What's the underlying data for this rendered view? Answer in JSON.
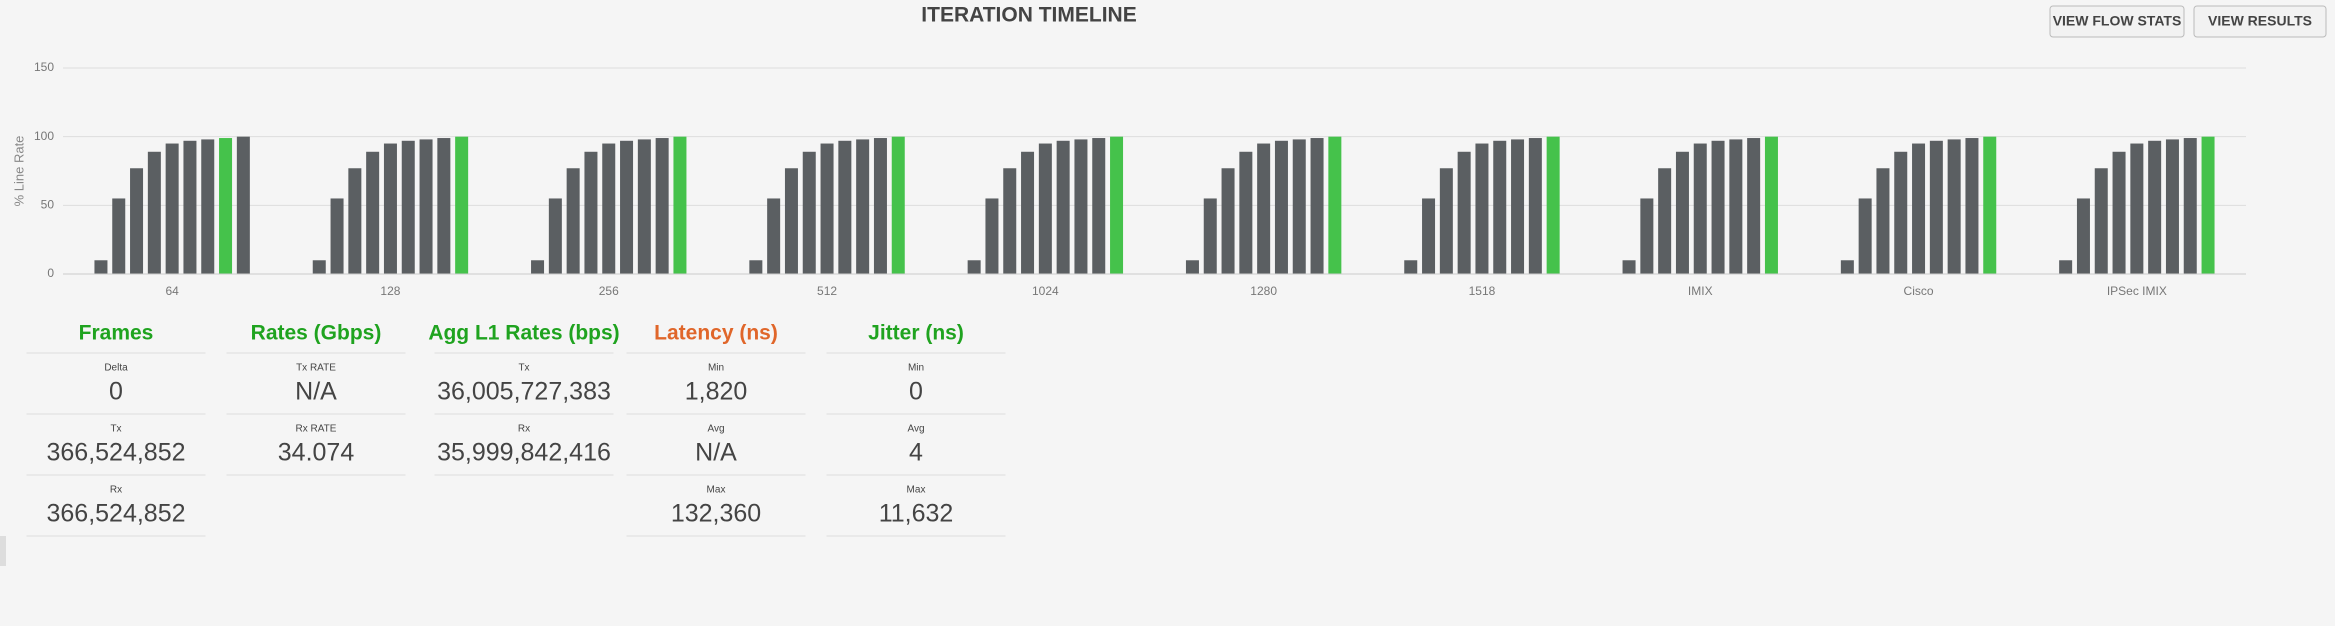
{
  "chart_data": {
    "type": "bar",
    "title": "ITERATION TIMELINE",
    "y_label": "% Line Rate",
    "categories": [
      "64",
      "128",
      "256",
      "512",
      "1024",
      "1280",
      "1518",
      "IMIX",
      "Cisco",
      "IPSec IMIX"
    ],
    "values": [
      [
        10,
        55,
        77,
        89,
        95,
        97,
        98,
        99,
        100
      ],
      [
        10,
        55,
        77,
        89,
        95,
        97,
        98,
        99,
        100
      ],
      [
        10,
        55,
        77,
        89,
        95,
        97,
        98,
        99,
        100
      ],
      [
        10,
        55,
        77,
        89,
        95,
        97,
        98,
        99,
        100
      ],
      [
        10,
        55,
        77,
        89,
        95,
        97,
        98,
        99,
        100
      ],
      [
        10,
        55,
        77,
        89,
        95,
        97,
        98,
        99,
        100
      ],
      [
        10,
        55,
        77,
        89,
        95,
        97,
        98,
        99,
        100
      ],
      [
        10,
        55,
        77,
        89,
        95,
        97,
        98,
        99,
        100
      ],
      [
        10,
        55,
        77,
        89,
        95,
        97,
        98,
        99,
        100
      ],
      [
        10,
        55,
        77,
        89,
        95,
        97,
        98,
        99,
        100
      ]
    ],
    "highlight": [
      7,
      8,
      8,
      8,
      8,
      8,
      8,
      8,
      8,
      8
    ],
    "color": "#5b5f62",
    "highlight_color": "#45c24b",
    "ylim": [
      0,
      150
    ],
    "yticks": [
      0,
      50,
      100,
      150
    ],
    "grid": true
  },
  "buttons": [
    "VIEW FLOW STATS",
    "VIEW RESULTS"
  ],
  "panels": [
    {
      "title": "Frames",
      "color": "#1fa31f",
      "rows": [
        {
          "label": "Delta",
          "value": "0"
        },
        {
          "label": "Tx",
          "value": "366,524,852"
        },
        {
          "label": "Rx",
          "value": "366,524,852"
        }
      ]
    },
    {
      "title": "Rates (Gbps)",
      "color": "#1fa31f",
      "rows": [
        {
          "label": "Tx RATE",
          "value": "N/A"
        },
        {
          "label": "Rx RATE",
          "value": "34.074"
        }
      ]
    },
    {
      "title": "Agg L1 Rates (bps)",
      "color": "#1fa31f",
      "rows": [
        {
          "label": "Tx",
          "value": "36,005,727,383"
        },
        {
          "label": "Rx",
          "value": "35,999,842,416"
        }
      ]
    },
    {
      "title": "Latency (ns)",
      "color": "#e0662a",
      "rows": [
        {
          "label": "Min",
          "value": "1,820"
        },
        {
          "label": "Avg",
          "value": "N/A"
        },
        {
          "label": "Max",
          "value": "132,360"
        }
      ]
    },
    {
      "title": "Jitter (ns)",
      "color": "#1fa31f",
      "rows": [
        {
          "label": "Min",
          "value": "0"
        },
        {
          "label": "Avg",
          "value": "4"
        },
        {
          "label": "Max",
          "value": "11,632"
        }
      ]
    }
  ]
}
